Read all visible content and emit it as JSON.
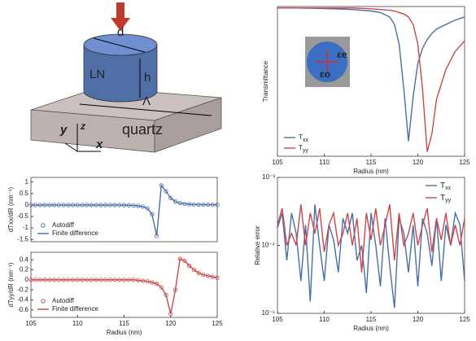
{
  "diagram": {
    "labels": {
      "d": "d",
      "ln": "LN",
      "h": "h",
      "period": "Λ",
      "substrate": "quartz",
      "x": "x",
      "y": "y",
      "z": "z"
    }
  },
  "chart_data": [
    {
      "type": "line",
      "x_label": "Radius (nm)",
      "y_label": "Transmittance",
      "xlim": [
        105,
        125
      ],
      "xticks": [
        105,
        110,
        115,
        120,
        125
      ],
      "ylim": [
        0,
        1
      ],
      "legend": "lower left",
      "annotations": [
        "εe",
        "εo"
      ],
      "x": [
        105,
        107,
        109,
        111,
        113,
        115,
        116,
        117,
        117.5,
        118,
        118.5,
        119,
        119.5,
        120,
        120.5,
        121,
        121.5,
        122,
        123,
        124,
        125
      ],
      "series": [
        {
          "name": "Txx",
          "color": "#4a6fa5",
          "values": [
            0.99,
            0.99,
            0.988,
            0.985,
            0.98,
            0.97,
            0.96,
            0.93,
            0.88,
            0.75,
            0.45,
            0.1,
            0.4,
            0.62,
            0.72,
            0.78,
            0.82,
            0.85,
            0.88,
            0.91,
            0.93
          ]
        },
        {
          "name": "Tyy",
          "color": "#c9474b",
          "values": [
            0.99,
            0.99,
            0.99,
            0.99,
            0.99,
            0.985,
            0.98,
            0.975,
            0.97,
            0.96,
            0.95,
            0.93,
            0.88,
            0.75,
            0.45,
            0.03,
            0.15,
            0.38,
            0.58,
            0.7,
            0.77
          ]
        }
      ]
    },
    {
      "type": "line",
      "y_label": "dTxx/dR (nm⁻¹)",
      "xlim": [
        105,
        125
      ],
      "ylim": [
        -1.6,
        1.2
      ],
      "yticks": [
        -1.5,
        -1,
        -0.5,
        0,
        0.5,
        1
      ],
      "legend": "lower left",
      "x": [
        105,
        105.5,
        106,
        106.5,
        107,
        107.5,
        108,
        108.5,
        109,
        109.5,
        110,
        110.5,
        111,
        111.5,
        112,
        112.5,
        113,
        113.5,
        114,
        114.5,
        115,
        115.5,
        116,
        116.5,
        117,
        117.5,
        118,
        118.5,
        119,
        119.5,
        120,
        120.5,
        121,
        121.5,
        122,
        122.5,
        123,
        123.5,
        124,
        124.5,
        125
      ],
      "series": [
        {
          "name": "Autodiff",
          "color": "#4a6fa5",
          "marker": true,
          "values": [
            0,
            0,
            0,
            0,
            0,
            0,
            0,
            0,
            0,
            0,
            0,
            0,
            0,
            0,
            0,
            0,
            0,
            0,
            0,
            0,
            -0.01,
            -0.015,
            -0.02,
            -0.04,
            -0.07,
            -0.15,
            -0.4,
            -1.35,
            0.85,
            0.6,
            0.3,
            0.15,
            0.08,
            0.05,
            0.03,
            0.02,
            0.015,
            0.01,
            0.01,
            0.01,
            0.01
          ]
        },
        {
          "name": "Finite difference",
          "color": "#4a6fa5",
          "marker": false,
          "values": [
            0,
            0,
            0,
            0,
            0,
            0,
            0,
            0,
            0,
            0,
            0,
            0,
            0,
            0,
            0,
            0,
            0,
            0,
            0,
            0,
            -0.01,
            -0.015,
            -0.02,
            -0.04,
            -0.07,
            -0.15,
            -0.4,
            -1.35,
            0.85,
            0.6,
            0.3,
            0.15,
            0.08,
            0.05,
            0.03,
            0.02,
            0.015,
            0.01,
            0.01,
            0.01,
            0.01
          ]
        }
      ]
    },
    {
      "type": "line",
      "x_label": "Radius (nm)",
      "y_label": "dTyy/dR (nm⁻¹)",
      "xlim": [
        105,
        125
      ],
      "xticks": [
        105,
        110,
        115,
        120,
        125
      ],
      "ylim": [
        -0.75,
        0.55
      ],
      "yticks": [
        -0.6,
        -0.4,
        -0.2,
        0,
        0.2,
        0.4
      ],
      "legend": "lower left",
      "x": [
        105,
        105.5,
        106,
        106.5,
        107,
        107.5,
        108,
        108.5,
        109,
        109.5,
        110,
        110.5,
        111,
        111.5,
        112,
        112.5,
        113,
        113.5,
        114,
        114.5,
        115,
        115.5,
        116,
        116.5,
        117,
        117.5,
        118,
        118.5,
        119,
        119.5,
        120,
        120.5,
        121,
        121.5,
        122,
        122.5,
        123,
        123.5,
        124,
        124.5,
        125
      ],
      "series": [
        {
          "name": "Autodiff",
          "color": "#c9474b",
          "marker": true,
          "values": [
            0,
            0,
            0,
            0,
            0,
            0,
            0,
            0,
            0,
            0,
            0,
            0,
            0,
            0,
            0,
            0,
            0,
            0,
            0,
            0,
            0,
            0,
            0,
            -0.01,
            -0.02,
            -0.03,
            -0.05,
            -0.08,
            -0.15,
            -0.3,
            -0.68,
            -0.2,
            0.42,
            0.38,
            0.28,
            0.2,
            0.14,
            0.1,
            0.08,
            0.06,
            0.04
          ]
        },
        {
          "name": "Finite difference",
          "color": "#c9474b",
          "marker": false,
          "values": [
            0,
            0,
            0,
            0,
            0,
            0,
            0,
            0,
            0,
            0,
            0,
            0,
            0,
            0,
            0,
            0,
            0,
            0,
            0,
            0,
            0,
            0,
            0,
            -0.01,
            -0.02,
            -0.03,
            -0.05,
            -0.08,
            -0.15,
            -0.3,
            -0.68,
            -0.2,
            0.42,
            0.38,
            0.28,
            0.2,
            0.14,
            0.1,
            0.08,
            0.06,
            0.04
          ]
        }
      ]
    },
    {
      "type": "line",
      "x_label": "Radius (nm)",
      "y_label": "Relative error",
      "xlim": [
        105,
        125
      ],
      "xticks": [
        105,
        110,
        115,
        120,
        125
      ],
      "ylim": [
        1e-05,
        0.001
      ],
      "log_y": true,
      "yticks": [
        {
          "value": 1e-05,
          "label": "10⁻⁵"
        },
        {
          "value": 0.0001,
          "label": "10⁻⁴"
        },
        {
          "value": 0.001,
          "label": "10⁻³"
        }
      ],
      "legend": "upper right",
      "x": [
        105,
        105.5,
        106,
        106.5,
        107,
        107.5,
        108,
        108.5,
        109,
        109.5,
        110,
        110.5,
        111,
        111.5,
        112,
        112.5,
        113,
        113.5,
        114,
        114.5,
        115,
        115.5,
        116,
        116.5,
        117,
        117.5,
        118,
        118.5,
        119,
        119.5,
        120,
        120.5,
        121,
        121.5,
        122,
        122.5,
        123,
        123.5,
        124,
        124.5,
        125
      ],
      "series": [
        {
          "name": "Txx",
          "color": "#4a6fa5",
          "values": [
            0.00018,
            0.0003,
            6e-05,
            0.0003,
            0.00015,
            3e-05,
            0.0002,
            1.5e-05,
            0.0004,
            0.0001,
            3e-05,
            0.0002,
            0.00012,
            4e-05,
            0.00025,
            0.00015,
            0.0003,
            6e-05,
            0.0001,
            2e-05,
            0.0003,
            0.0001,
            2.5e-05,
            0.00025,
            5e-05,
            1.2e-05,
            0.00025,
            0.00015,
            4e-05,
            0.0002,
            2.5e-05,
            0.00025,
            0.00015,
            5e-05,
            0.00025,
            3e-05,
            0.0002,
            0.0001,
            0.0003,
            0.0002,
            3e-05
          ]
        },
        {
          "name": "Tyy",
          "color": "#c9474b",
          "values": [
            0.0002,
            0.00035,
            0.0001,
            0.00015,
            0.0001,
            0.0004,
            0.0001,
            0.0003,
            0.00015,
            0.00035,
            8e-05,
            0.0002,
            0.0003,
            0.0001,
            0.00015,
            0.0003,
            0.0001,
            0.00025,
            4e-05,
            0.0003,
            0.00012,
            0.00035,
            0.0001,
            0.0002,
            0.0004,
            6e-05,
            0.0003,
            0.0001,
            0.00015,
            0.0003,
            0.0001,
            0.0002,
            0.00035,
            8e-05,
            0.00025,
            0.00012,
            0.0003,
            0.0001,
            0.0002,
            0.0001,
            0.00025
          ]
        }
      ]
    }
  ]
}
